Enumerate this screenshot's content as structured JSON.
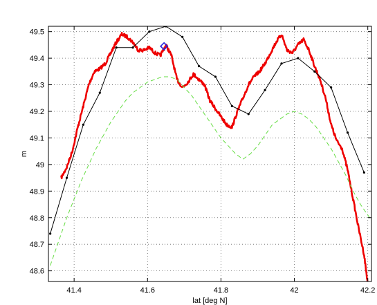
{
  "chart_data": {
    "type": "line",
    "title": "",
    "xlabel": "lat [deg N]",
    "ylabel": "m",
    "xlim": [
      41.33,
      42.21
    ],
    "ylim": [
      48.56,
      49.52
    ],
    "xticks": [
      41.4,
      41.6,
      41.8,
      42.0,
      42.2
    ],
    "xtick_labels": [
      "41.4",
      "41.6",
      "41.8",
      "42",
      "42.2"
    ],
    "yticks": [
      48.6,
      48.7,
      48.8,
      48.9,
      49.0,
      49.1,
      49.2,
      49.3,
      49.4,
      49.5
    ],
    "ytick_labels": [
      "48.6",
      "48.7",
      "48.8",
      "48.9",
      "49",
      "49.1",
      "49.2",
      "49.3",
      "49.4",
      "49.5"
    ],
    "grid": true,
    "series": [
      {
        "style": "red-thick-noisy",
        "color": "#ee0000",
        "x": [
          41.365,
          41.38,
          41.395,
          41.41,
          41.425,
          41.44,
          41.455,
          41.47,
          41.485,
          41.5,
          41.515,
          41.53,
          41.545,
          41.56,
          41.575,
          41.59,
          41.605,
          41.62,
          41.635,
          41.65,
          41.665,
          41.68,
          41.695,
          41.71,
          41.725,
          41.74,
          41.755,
          41.77,
          41.785,
          41.8,
          41.815,
          41.83,
          41.845,
          41.86,
          41.875,
          41.89,
          41.905,
          41.92,
          41.935,
          41.95,
          41.965,
          41.98,
          41.995,
          42.01,
          42.025,
          42.04,
          42.055,
          42.07,
          42.085,
          42.1,
          42.115,
          42.13,
          42.145,
          42.16,
          42.175,
          42.19,
          42.2
        ],
        "y": [
          48.95,
          48.99,
          49.05,
          49.14,
          49.22,
          49.3,
          49.35,
          49.36,
          49.38,
          49.42,
          49.46,
          49.49,
          49.48,
          49.46,
          49.43,
          49.43,
          49.44,
          49.42,
          49.41,
          49.45,
          49.41,
          49.32,
          49.29,
          49.31,
          49.34,
          49.32,
          49.3,
          49.24,
          49.21,
          49.18,
          49.15,
          49.14,
          49.2,
          49.25,
          49.3,
          49.33,
          49.35,
          49.38,
          49.42,
          49.46,
          49.49,
          49.43,
          49.42,
          49.45,
          49.47,
          49.43,
          49.37,
          49.32,
          49.25,
          49.15,
          49.09,
          49.06,
          48.98,
          48.87,
          48.76,
          48.66,
          48.55
        ]
      },
      {
        "style": "black-thin-markers",
        "color": "#000000",
        "x": [
          41.335,
          41.38,
          41.425,
          41.47,
          41.515,
          41.56,
          41.605,
          41.65,
          41.695,
          41.74,
          41.785,
          41.83,
          41.875,
          41.92,
          41.965,
          42.01,
          42.055,
          42.1,
          42.145,
          42.19
        ],
        "y": [
          48.74,
          48.95,
          49.15,
          49.27,
          49.44,
          49.44,
          49.5,
          49.52,
          49.48,
          49.37,
          49.33,
          49.22,
          49.19,
          49.28,
          49.38,
          49.4,
          49.35,
          49.29,
          49.12,
          48.97
        ]
      },
      {
        "style": "green-dashed",
        "color": "#66dd44",
        "x": [
          41.335,
          41.36,
          41.38,
          41.4,
          41.42,
          41.44,
          41.46,
          41.48,
          41.5,
          41.52,
          41.54,
          41.56,
          41.58,
          41.6,
          41.62,
          41.64,
          41.66,
          41.68,
          41.7,
          41.72,
          41.74,
          41.76,
          41.78,
          41.8,
          41.82,
          41.84,
          41.86,
          41.88,
          41.9,
          41.92,
          41.94,
          41.96,
          41.98,
          42.0,
          42.02,
          42.04,
          42.06,
          42.08,
          42.1,
          42.12,
          42.14,
          42.16,
          42.18,
          42.2,
          42.21
        ],
        "y": [
          48.62,
          48.72,
          48.8,
          48.87,
          48.94,
          49.0,
          49.06,
          49.11,
          49.16,
          49.2,
          49.24,
          49.27,
          49.29,
          49.31,
          49.32,
          49.33,
          49.33,
          49.32,
          49.29,
          49.26,
          49.22,
          49.18,
          49.14,
          49.1,
          49.07,
          49.04,
          49.02,
          49.04,
          49.07,
          49.11,
          49.15,
          49.17,
          49.19,
          49.2,
          49.19,
          49.17,
          49.14,
          49.1,
          49.06,
          49.01,
          48.96,
          48.9,
          48.85,
          48.81,
          48.79
        ]
      },
      {
        "style": "blue-diamond-marker",
        "color": "#2222dd",
        "x": [
          41.645
        ],
        "y": [
          49.445
        ]
      }
    ]
  }
}
